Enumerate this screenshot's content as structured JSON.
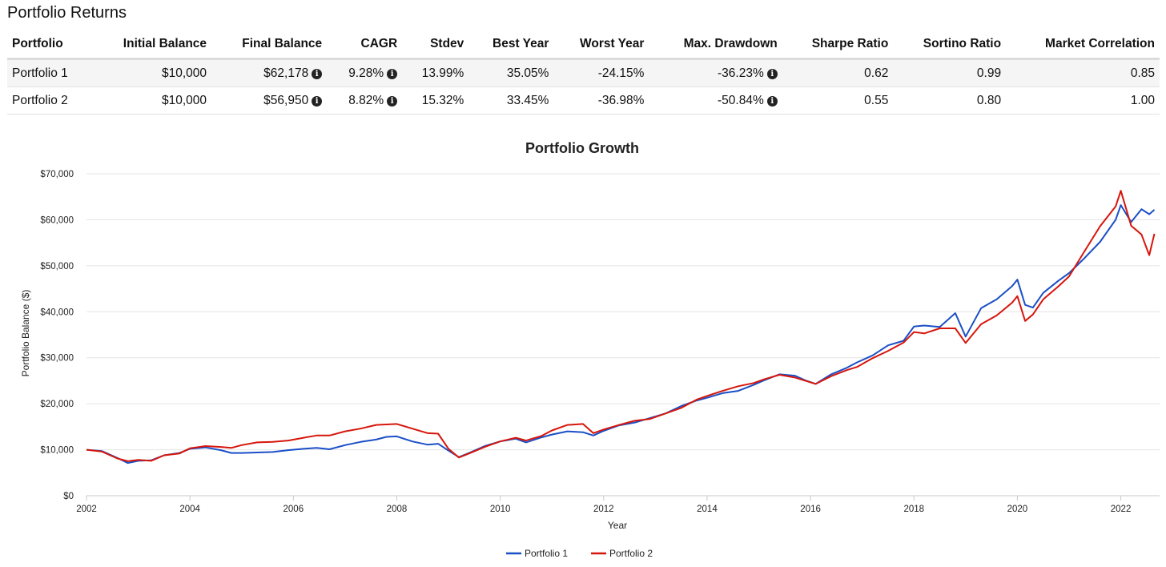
{
  "page_title": "Portfolio Returns",
  "table": {
    "headers": [
      "Portfolio",
      "Initial Balance",
      "Final Balance",
      "CAGR",
      "Stdev",
      "Best Year",
      "Worst Year",
      "Max. Drawdown",
      "Sharpe Ratio",
      "Sortino Ratio",
      "Market Correlation"
    ],
    "rows": [
      [
        "Portfolio 1",
        "$10,000",
        "$62,178",
        "9.28%",
        "13.99%",
        "35.05%",
        "-24.15%",
        "-36.23%",
        "0.62",
        "0.99",
        "0.85"
      ],
      [
        "Portfolio 2",
        "$10,000",
        "$56,950",
        "8.82%",
        "15.32%",
        "33.45%",
        "-36.98%",
        "-50.84%",
        "0.55",
        "0.80",
        "1.00"
      ]
    ],
    "info_icon_columns": [
      2,
      3,
      7
    ]
  },
  "chart_data": {
    "type": "line",
    "title": "Portfolio Growth",
    "xlabel": "Year",
    "ylabel": "Portfolio Balance ($)",
    "xlim": [
      2002,
      2022.75
    ],
    "ylim": [
      0,
      70000
    ],
    "xticks": [
      2002,
      2004,
      2006,
      2008,
      2010,
      2012,
      2014,
      2016,
      2018,
      2020,
      2022
    ],
    "yticks": [
      0,
      10000,
      20000,
      30000,
      40000,
      50000,
      60000,
      70000
    ],
    "ytick_labels": [
      "$0",
      "$10,000",
      "$20,000",
      "$30,000",
      "$40,000",
      "$50,000",
      "$60,000",
      "$70,000"
    ],
    "grid": "horizontal",
    "legend": "bottom-center",
    "series": [
      {
        "name": "Portfolio 1",
        "color": "#1a4fc6",
        "points": [
          [
            2002.0,
            10000
          ],
          [
            2002.3,
            9700
          ],
          [
            2002.6,
            8200
          ],
          [
            2002.8,
            7100
          ],
          [
            2003.0,
            7600
          ],
          [
            2003.25,
            7700
          ],
          [
            2003.5,
            8800
          ],
          [
            2003.8,
            9300
          ],
          [
            2004.0,
            10200
          ],
          [
            2004.3,
            10500
          ],
          [
            2004.6,
            9900
          ],
          [
            2004.8,
            9300
          ],
          [
            2005.0,
            9300
          ],
          [
            2005.3,
            9400
          ],
          [
            2005.6,
            9500
          ],
          [
            2005.9,
            9900
          ],
          [
            2006.2,
            10200
          ],
          [
            2006.45,
            10400
          ],
          [
            2006.7,
            10100
          ],
          [
            2007.0,
            11000
          ],
          [
            2007.3,
            11700
          ],
          [
            2007.6,
            12200
          ],
          [
            2007.8,
            12800
          ],
          [
            2008.0,
            12900
          ],
          [
            2008.3,
            11800
          ],
          [
            2008.6,
            11100
          ],
          [
            2008.8,
            11300
          ],
          [
            2009.0,
            9800
          ],
          [
            2009.2,
            8400
          ],
          [
            2009.4,
            9300
          ],
          [
            2009.7,
            10800
          ],
          [
            2010.0,
            11800
          ],
          [
            2010.3,
            12400
          ],
          [
            2010.5,
            11600
          ],
          [
            2010.8,
            12700
          ],
          [
            2011.0,
            13300
          ],
          [
            2011.3,
            14000
          ],
          [
            2011.6,
            13800
          ],
          [
            2011.8,
            13100
          ],
          [
            2012.0,
            14100
          ],
          [
            2012.3,
            15300
          ],
          [
            2012.6,
            15900
          ],
          [
            2012.9,
            16900
          ],
          [
            2013.2,
            17900
          ],
          [
            2013.5,
            19500
          ],
          [
            2013.8,
            20700
          ],
          [
            2014.0,
            21300
          ],
          [
            2014.3,
            22300
          ],
          [
            2014.6,
            22800
          ],
          [
            2014.9,
            24100
          ],
          [
            2015.1,
            25100
          ],
          [
            2015.4,
            26400
          ],
          [
            2015.7,
            26100
          ],
          [
            2015.9,
            25100
          ],
          [
            2016.1,
            24300
          ],
          [
            2016.4,
            26400
          ],
          [
            2016.7,
            27800
          ],
          [
            2016.9,
            29000
          ],
          [
            2017.2,
            30500
          ],
          [
            2017.5,
            32700
          ],
          [
            2017.8,
            33700
          ],
          [
            2018.0,
            36800
          ],
          [
            2018.2,
            37000
          ],
          [
            2018.5,
            36700
          ],
          [
            2018.8,
            39700
          ],
          [
            2019.0,
            34600
          ],
          [
            2019.3,
            40800
          ],
          [
            2019.6,
            42700
          ],
          [
            2019.9,
            45600
          ],
          [
            2020.0,
            47000
          ],
          [
            2020.15,
            41500
          ],
          [
            2020.3,
            40900
          ],
          [
            2020.5,
            44100
          ],
          [
            2020.8,
            46800
          ],
          [
            2021.0,
            48400
          ],
          [
            2021.3,
            51700
          ],
          [
            2021.6,
            55200
          ],
          [
            2021.9,
            60000
          ],
          [
            2022.0,
            63200
          ],
          [
            2022.2,
            59500
          ],
          [
            2022.4,
            62300
          ],
          [
            2022.55,
            61200
          ],
          [
            2022.65,
            62178
          ]
        ]
      },
      {
        "name": "Portfolio 2",
        "color": "#d6160c",
        "points": [
          [
            2002.0,
            10000
          ],
          [
            2002.3,
            9600
          ],
          [
            2002.6,
            8100
          ],
          [
            2002.8,
            7500
          ],
          [
            2003.0,
            7800
          ],
          [
            2003.25,
            7600
          ],
          [
            2003.5,
            8800
          ],
          [
            2003.8,
            9200
          ],
          [
            2004.0,
            10300
          ],
          [
            2004.3,
            10800
          ],
          [
            2004.6,
            10600
          ],
          [
            2004.8,
            10400
          ],
          [
            2005.0,
            11000
          ],
          [
            2005.3,
            11600
          ],
          [
            2005.6,
            11700
          ],
          [
            2005.9,
            12000
          ],
          [
            2006.2,
            12600
          ],
          [
            2006.45,
            13100
          ],
          [
            2006.7,
            13100
          ],
          [
            2007.0,
            14000
          ],
          [
            2007.3,
            14600
          ],
          [
            2007.6,
            15400
          ],
          [
            2007.8,
            15500
          ],
          [
            2008.0,
            15600
          ],
          [
            2008.3,
            14600
          ],
          [
            2008.6,
            13600
          ],
          [
            2008.8,
            13500
          ],
          [
            2009.0,
            10200
          ],
          [
            2009.2,
            8300
          ],
          [
            2009.4,
            9200
          ],
          [
            2009.7,
            10600
          ],
          [
            2010.0,
            11800
          ],
          [
            2010.3,
            12600
          ],
          [
            2010.5,
            12000
          ],
          [
            2010.8,
            13000
          ],
          [
            2011.0,
            14200
          ],
          [
            2011.3,
            15400
          ],
          [
            2011.6,
            15600
          ],
          [
            2011.8,
            13600
          ],
          [
            2012.0,
            14400
          ],
          [
            2012.3,
            15400
          ],
          [
            2012.6,
            16300
          ],
          [
            2012.9,
            16700
          ],
          [
            2013.2,
            17900
          ],
          [
            2013.5,
            19100
          ],
          [
            2013.8,
            20900
          ],
          [
            2014.0,
            21700
          ],
          [
            2014.3,
            22800
          ],
          [
            2014.6,
            23800
          ],
          [
            2014.9,
            24500
          ],
          [
            2015.1,
            25300
          ],
          [
            2015.4,
            26300
          ],
          [
            2015.7,
            25700
          ],
          [
            2015.9,
            25000
          ],
          [
            2016.1,
            24300
          ],
          [
            2016.4,
            26000
          ],
          [
            2016.7,
            27300
          ],
          [
            2016.9,
            28000
          ],
          [
            2017.2,
            29900
          ],
          [
            2017.5,
            31500
          ],
          [
            2017.8,
            33300
          ],
          [
            2018.0,
            35600
          ],
          [
            2018.2,
            35300
          ],
          [
            2018.5,
            36400
          ],
          [
            2018.8,
            36400
          ],
          [
            2019.0,
            33200
          ],
          [
            2019.3,
            37300
          ],
          [
            2019.6,
            39200
          ],
          [
            2019.9,
            42000
          ],
          [
            2020.0,
            43400
          ],
          [
            2020.15,
            38000
          ],
          [
            2020.3,
            39400
          ],
          [
            2020.5,
            42700
          ],
          [
            2020.8,
            45600
          ],
          [
            2021.0,
            47700
          ],
          [
            2021.3,
            53200
          ],
          [
            2021.6,
            58600
          ],
          [
            2021.9,
            62900
          ],
          [
            2022.0,
            66300
          ],
          [
            2022.2,
            58700
          ],
          [
            2022.4,
            56800
          ],
          [
            2022.55,
            52300
          ],
          [
            2022.65,
            56950
          ]
        ]
      }
    ]
  }
}
